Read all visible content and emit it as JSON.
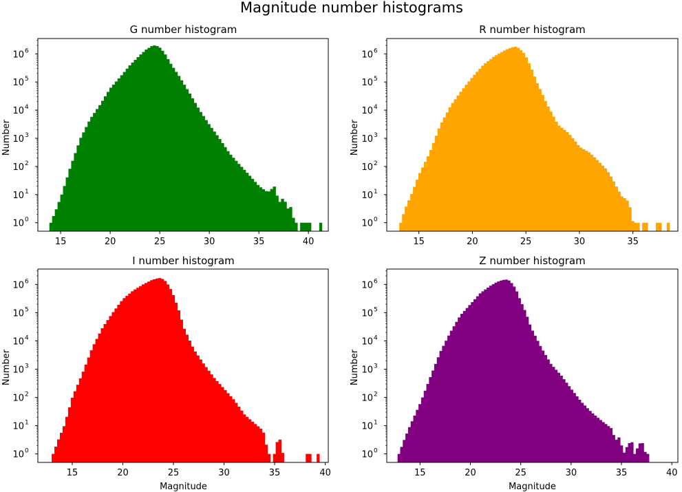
{
  "figure": {
    "title": "Magnitude number histograms"
  },
  "chart_data": [
    {
      "type": "bar",
      "title": "G number histogram",
      "xlabel": "",
      "ylabel": "Number",
      "xlim": [
        12.7,
        42.0
      ],
      "ylim": [
        0.5,
        3500000
      ],
      "yscale": "log",
      "xticks": [
        15,
        20,
        25,
        30,
        35,
        40
      ],
      "yticks": [
        1,
        10,
        100,
        1000,
        10000,
        100000,
        1000000
      ],
      "ytick_labels": [
        "10^0",
        "10^1",
        "10^2",
        "10^3",
        "10^4",
        "10^5",
        "10^6"
      ],
      "color": "#008000",
      "bin_width": 0.275,
      "series": [
        {
          "x": [
            14.0,
            14.55,
            15.1,
            16.0,
            17.0,
            18.0,
            19.0,
            20.0,
            21.0,
            22.0,
            23.0,
            23.6,
            24.2,
            24.5,
            24.9,
            25.2,
            25.6,
            26.0,
            27.0,
            28.0,
            29.0,
            30.0,
            31.0,
            32.0,
            33.0,
            34.0,
            35.0,
            35.9,
            36.6,
            37.0,
            37.5,
            37.9,
            38.1,
            38.6,
            39.0,
            39.5,
            40.0,
            40.5,
            41.0,
            41.3
          ],
          "y": [
            1,
            3,
            10,
            100,
            1000,
            5000,
            16000,
            60000,
            150000,
            400000,
            900000,
            1400000,
            1900000,
            2000000,
            1800000,
            1400000,
            900000,
            500000,
            150000,
            40000,
            10000,
            3000,
            1000,
            300,
            120,
            50,
            20,
            12,
            20,
            5,
            8,
            3,
            5,
            1,
            0,
            1,
            1,
            0,
            0,
            1
          ]
        }
      ]
    },
    {
      "type": "bar",
      "title": "R number histogram",
      "xlabel": "",
      "ylabel": "Number",
      "xlim": [
        12.0,
        39.2
      ],
      "ylim": [
        0.5,
        3500000
      ],
      "yscale": "log",
      "xticks": [
        15,
        20,
        25,
        30,
        35
      ],
      "yticks": [
        1,
        10,
        100,
        1000,
        10000,
        100000,
        1000000
      ],
      "ytick_labels": [
        "10^0",
        "10^1",
        "10^2",
        "10^3",
        "10^4",
        "10^5",
        "10^6"
      ],
      "color": "#FFA500",
      "bin_width": 0.255,
      "series": [
        {
          "x": [
            13.3,
            13.7,
            14.3,
            15.0,
            16.0,
            17.0,
            18.0,
            19.0,
            20.0,
            21.0,
            22.0,
            22.8,
            23.3,
            23.7,
            24.0,
            24.3,
            24.7,
            25.0,
            25.5,
            26.0,
            27.0,
            28.0,
            29.0,
            30.0,
            31.0,
            31.8,
            32.5,
            33.0,
            33.6,
            34.0,
            34.4,
            34.8,
            35.0,
            35.3,
            35.7,
            36.0,
            37.0,
            37.5,
            38.0,
            38.3
          ],
          "y": [
            1,
            3,
            10,
            50,
            300,
            3000,
            15000,
            50000,
            150000,
            400000,
            800000,
            1200000,
            1500000,
            1700000,
            1800000,
            1600000,
            1200000,
            800000,
            300000,
            100000,
            15000,
            3000,
            1500,
            500,
            300,
            150,
            80,
            40,
            15,
            8,
            7,
            3,
            1,
            1,
            0,
            1,
            0,
            1,
            0,
            1
          ]
        }
      ]
    },
    {
      "type": "bar",
      "title": "I number histogram",
      "xlabel": "Magnitude",
      "ylabel": "Number",
      "xlim": [
        11.6,
        40.3
      ],
      "ylim": [
        0.5,
        3500000
      ],
      "yscale": "log",
      "xticks": [
        15,
        20,
        25,
        30,
        35,
        40
      ],
      "yticks": [
        1,
        10,
        100,
        1000,
        10000,
        100000,
        1000000
      ],
      "ytick_labels": [
        "10^0",
        "10^1",
        "10^2",
        "10^3",
        "10^4",
        "10^5",
        "10^6"
      ],
      "color": "#FF0000",
      "bin_width": 0.27,
      "series": [
        {
          "x": [
            13.1,
            13.6,
            14.2,
            15.0,
            16.0,
            17.0,
            18.0,
            19.0,
            20.0,
            21.0,
            22.0,
            22.8,
            23.3,
            23.7,
            24.0,
            24.3,
            24.7,
            25.0,
            25.6,
            26.0,
            27.0,
            28.0,
            29.0,
            30.0,
            31.0,
            32.0,
            33.0,
            33.6,
            34.0,
            34.3,
            34.7,
            35.0,
            35.4,
            35.8,
            36.2,
            37.0,
            38.0,
            38.2,
            39.0,
            39.3
          ],
          "y": [
            1,
            3,
            10,
            100,
            700,
            6000,
            30000,
            100000,
            300000,
            600000,
            1000000,
            1400000,
            1600000,
            1700000,
            1500000,
            1200000,
            700000,
            400000,
            100000,
            30000,
            5000,
            1500,
            500,
            200,
            80,
            25,
            12,
            8,
            5,
            1,
            0,
            1,
            5,
            1,
            0,
            0,
            0,
            1,
            0,
            1
          ]
        }
      ]
    },
    {
      "type": "bar",
      "title": "Z number histogram",
      "xlabel": "Magnitude",
      "ylabel": "Number",
      "xlim": [
        11.7,
        40.6
      ],
      "ylim": [
        0.5,
        3500000
      ],
      "yscale": "log",
      "xticks": [
        15,
        20,
        25,
        30,
        35,
        40
      ],
      "yticks": [
        1,
        10,
        100,
        1000,
        10000,
        100000,
        1000000
      ],
      "ytick_labels": [
        "10^0",
        "10^1",
        "10^2",
        "10^3",
        "10^4",
        "10^5",
        "10^6"
      ],
      "color": "#800080",
      "bin_width": 0.26,
      "series": [
        {
          "x": [
            12.9,
            13.4,
            14.0,
            15.0,
            16.0,
            17.0,
            18.0,
            19.0,
            20.0,
            21.0,
            22.0,
            22.6,
            23.1,
            23.5,
            23.8,
            24.1,
            24.5,
            24.9,
            25.5,
            26.0,
            27.0,
            28.0,
            29.0,
            30.0,
            31.0,
            32.0,
            33.0,
            34.0,
            34.4,
            34.8,
            35.2,
            35.6,
            36.0,
            36.3,
            36.7,
            37.0,
            37.4,
            38.0,
            38.5,
            38.8
          ],
          "y": [
            1,
            3,
            10,
            60,
            500,
            4000,
            20000,
            80000,
            200000,
            500000,
            900000,
            1200000,
            1400000,
            1500000,
            1400000,
            1100000,
            700000,
            300000,
            100000,
            30000,
            6000,
            1500,
            600,
            200,
            70,
            30,
            15,
            8,
            3,
            4,
            1,
            2,
            3,
            1,
            2,
            3,
            1,
            0,
            0,
            1
          ]
        }
      ]
    }
  ]
}
